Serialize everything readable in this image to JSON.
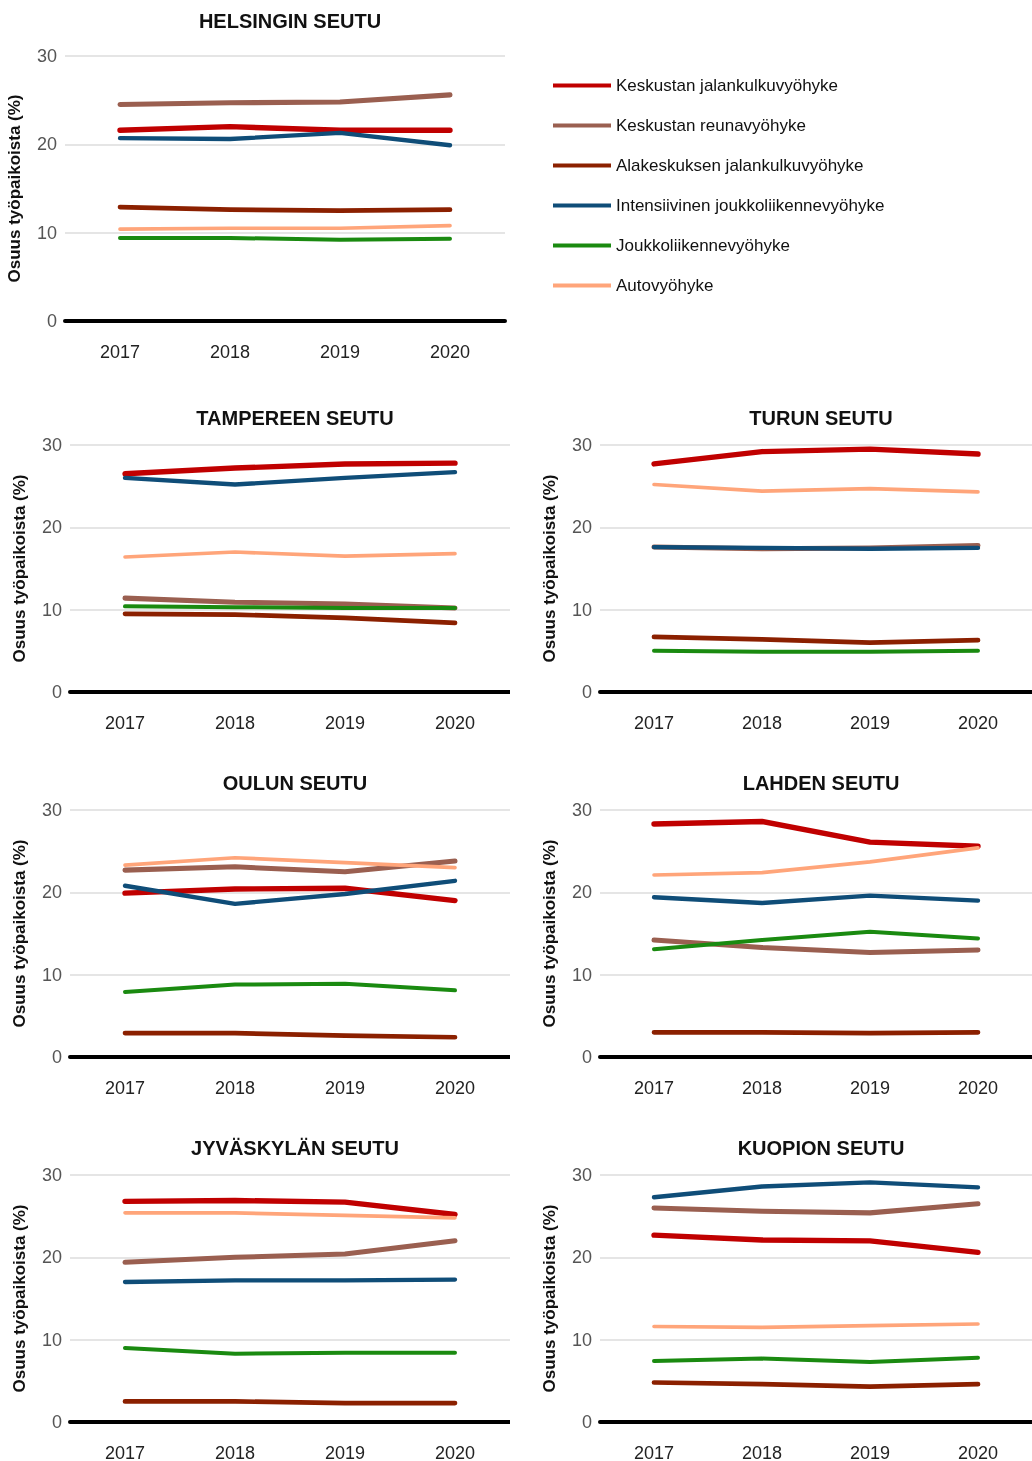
{
  "chart_data": [
    {
      "type": "line",
      "title": "HELSINGIN SEUTU",
      "ylabel": "Osuus työpaikoista (%)",
      "categories": [
        "2017",
        "2018",
        "2019",
        "2020"
      ],
      "ylim": [
        0,
        30
      ],
      "yticks": [
        0,
        10,
        20,
        30
      ],
      "grid": "y",
      "legend": "right",
      "marker": "none",
      "line_style": "solid",
      "series": [
        {
          "name": "Keskustan jalankulkuvyöhyke",
          "color": "#c00000",
          "values": [
            21.6,
            22.0,
            21.6,
            21.6
          ]
        },
        {
          "name": "Keskustan reunavyöhyke",
          "color": "#9a5f50",
          "values": [
            24.5,
            24.7,
            24.8,
            25.6
          ]
        },
        {
          "name": "Alakeskuksen jalankulkuvyöhyke",
          "color": "#8b2000",
          "values": [
            12.9,
            12.6,
            12.5,
            12.6
          ]
        },
        {
          "name": "Intensiivinen joukkoliikennevyöhyke",
          "color": "#0f4d78",
          "values": [
            20.7,
            20.6,
            21.3,
            19.9
          ]
        },
        {
          "name": "Joukkoliikennevyöhyke",
          "color": "#1a8a10",
          "values": [
            9.4,
            9.4,
            9.2,
            9.3
          ]
        },
        {
          "name": "Autovyöhyke",
          "color": "#ffa57a",
          "values": [
            10.4,
            10.5,
            10.5,
            10.8
          ]
        }
      ]
    },
    {
      "type": "line",
      "title": "TAMPEREEN SEUTU",
      "ylabel": "Osuus työpaikoista (%)",
      "categories": [
        "2017",
        "2018",
        "2019",
        "2020"
      ],
      "ylim": [
        0,
        30
      ],
      "yticks": [
        0,
        10,
        20,
        30
      ],
      "grid": "y",
      "marker": "none",
      "line_style": "solid",
      "series": [
        {
          "color": "#c00000",
          "values": [
            26.5,
            27.2,
            27.7,
            27.8
          ]
        },
        {
          "color": "#9a5f50",
          "values": [
            11.4,
            10.9,
            10.7,
            10.2
          ]
        },
        {
          "color": "#8b2000",
          "values": [
            9.5,
            9.4,
            9.0,
            8.4
          ]
        },
        {
          "color": "#0f4d78",
          "values": [
            26.0,
            25.2,
            26.0,
            26.7
          ]
        },
        {
          "color": "#1a8a10",
          "values": [
            10.4,
            10.3,
            10.2,
            10.2
          ]
        },
        {
          "color": "#ffa57a",
          "values": [
            16.4,
            17.0,
            16.5,
            16.8
          ]
        }
      ]
    },
    {
      "type": "line",
      "title": "TURUN SEUTU",
      "ylabel": "Osuus työpaikoista (%)",
      "categories": [
        "2017",
        "2018",
        "2019",
        "2020"
      ],
      "ylim": [
        0,
        30
      ],
      "yticks": [
        0,
        10,
        20,
        30
      ],
      "grid": "y",
      "marker": "none",
      "line_style": "solid",
      "series": [
        {
          "color": "#c00000",
          "values": [
            27.7,
            29.2,
            29.5,
            28.9
          ]
        },
        {
          "color": "#9a5f50",
          "values": [
            17.6,
            17.4,
            17.5,
            17.8
          ]
        },
        {
          "color": "#8b2000",
          "values": [
            6.7,
            6.4,
            6.0,
            6.3
          ]
        },
        {
          "color": "#0f4d78",
          "values": [
            17.6,
            17.5,
            17.4,
            17.5
          ]
        },
        {
          "color": "#1a8a10",
          "values": [
            5.0,
            4.9,
            4.9,
            5.0
          ]
        },
        {
          "color": "#ffa57a",
          "values": [
            25.2,
            24.4,
            24.7,
            24.3
          ]
        }
      ]
    },
    {
      "type": "line",
      "title": "OULUN SEUTU",
      "ylabel": "Osuus työpaikoista (%)",
      "categories": [
        "2017",
        "2018",
        "2019",
        "2020"
      ],
      "ylim": [
        0,
        30
      ],
      "yticks": [
        0,
        10,
        20,
        30
      ],
      "grid": "y",
      "marker": "none",
      "line_style": "solid",
      "series": [
        {
          "color": "#c00000",
          "values": [
            19.9,
            20.4,
            20.5,
            19.0
          ]
        },
        {
          "color": "#9a5f50",
          "values": [
            22.7,
            23.1,
            22.5,
            23.8
          ]
        },
        {
          "color": "#8b2000",
          "values": [
            2.9,
            2.9,
            2.6,
            2.4
          ]
        },
        {
          "color": "#0f4d78",
          "values": [
            20.8,
            18.6,
            19.8,
            21.4
          ]
        },
        {
          "color": "#1a8a10",
          "values": [
            7.9,
            8.8,
            8.9,
            8.1
          ]
        },
        {
          "color": "#ffa57a",
          "values": [
            23.3,
            24.2,
            23.6,
            23.0
          ]
        }
      ]
    },
    {
      "type": "line",
      "title": "LAHDEN SEUTU",
      "ylabel": "Osuus työpaikoista (%)",
      "categories": [
        "2017",
        "2018",
        "2019",
        "2020"
      ],
      "ylim": [
        0,
        30
      ],
      "yticks": [
        0,
        10,
        20,
        30
      ],
      "grid": "y",
      "marker": "none",
      "line_style": "solid",
      "series": [
        {
          "color": "#c00000",
          "values": [
            28.3,
            28.6,
            26.1,
            25.6
          ]
        },
        {
          "color": "#9a5f50",
          "values": [
            14.2,
            13.3,
            12.7,
            13.0
          ]
        },
        {
          "color": "#8b2000",
          "values": [
            3.0,
            3.0,
            2.9,
            3.0
          ]
        },
        {
          "color": "#0f4d78",
          "values": [
            19.4,
            18.7,
            19.6,
            19.0
          ]
        },
        {
          "color": "#1a8a10",
          "values": [
            13.1,
            14.2,
            15.2,
            14.4
          ]
        },
        {
          "color": "#ffa57a",
          "values": [
            22.1,
            22.4,
            23.7,
            25.4
          ]
        }
      ]
    },
    {
      "type": "line",
      "title": "JYVÄSKYLÄN SEUTU",
      "ylabel": "Osuus työpaikoista (%)",
      "categories": [
        "2017",
        "2018",
        "2019",
        "2020"
      ],
      "ylim": [
        0,
        30
      ],
      "yticks": [
        0,
        10,
        20,
        30
      ],
      "grid": "y",
      "marker": "none",
      "line_style": "solid",
      "series": [
        {
          "color": "#c00000",
          "values": [
            26.8,
            26.9,
            26.7,
            25.2
          ]
        },
        {
          "color": "#9a5f50",
          "values": [
            19.4,
            20.0,
            20.4,
            22.0
          ]
        },
        {
          "color": "#8b2000",
          "values": [
            2.5,
            2.5,
            2.3,
            2.3
          ]
        },
        {
          "color": "#0f4d78",
          "values": [
            17.0,
            17.2,
            17.2,
            17.3
          ]
        },
        {
          "color": "#1a8a10",
          "values": [
            9.0,
            8.3,
            8.4,
            8.4
          ]
        },
        {
          "color": "#ffa57a",
          "values": [
            25.4,
            25.4,
            25.1,
            24.8
          ]
        }
      ]
    },
    {
      "type": "line",
      "title": "KUOPION SEUTU",
      "ylabel": "Osuus työpaikoista (%)",
      "categories": [
        "2017",
        "2018",
        "2019",
        "2020"
      ],
      "ylim": [
        0,
        30
      ],
      "yticks": [
        0,
        10,
        20,
        30
      ],
      "grid": "y",
      "marker": "none",
      "line_style": "solid",
      "series": [
        {
          "color": "#c00000",
          "values": [
            22.7,
            22.1,
            22.0,
            20.6
          ]
        },
        {
          "color": "#9a5f50",
          "values": [
            26.0,
            25.6,
            25.4,
            26.5
          ]
        },
        {
          "color": "#8b2000",
          "values": [
            4.8,
            4.6,
            4.3,
            4.6
          ]
        },
        {
          "color": "#0f4d78",
          "values": [
            27.3,
            28.6,
            29.1,
            28.5
          ]
        },
        {
          "color": "#1a8a10",
          "values": [
            7.4,
            7.7,
            7.3,
            7.8
          ]
        },
        {
          "color": "#ffa57a",
          "values": [
            11.6,
            11.5,
            11.7,
            11.9
          ]
        }
      ]
    }
  ]
}
